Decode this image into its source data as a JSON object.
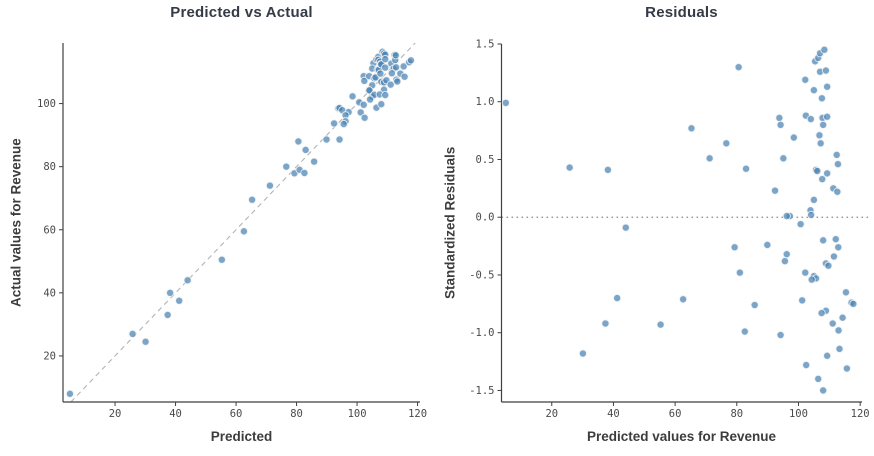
{
  "figure": {
    "background": "#ffffff"
  },
  "colors": {
    "marker": "#4682B4",
    "marker_opacity": 0.72,
    "marker_edge": "#f2f2f2",
    "identity_line": "#b3b3b3",
    "zero_line": "#8a8a8a",
    "axis": "#3f3f3f",
    "tick_label": "#4a4a4a",
    "title": "#343b47",
    "axis_label": "#3d3d3d"
  },
  "chart_data": [
    {
      "type": "scatter",
      "title": "Predicted vs Actual",
      "xlabel": "Predicted",
      "ylabel": "Actual values for Revenue",
      "xlim": [
        2.8,
        120.8
      ],
      "ylim": [
        5.4,
        119.2
      ],
      "xticks": [
        20,
        40,
        60,
        80,
        100,
        120
      ],
      "xtick_labels": [
        "20",
        "40",
        "60",
        "80",
        "100",
        "120"
      ],
      "yticks": [
        20,
        40,
        60,
        80,
        100
      ],
      "ytick_labels": [
        "20",
        "40",
        "60",
        "80",
        "100"
      ],
      "grid": false,
      "legend": false,
      "identity_line": true,
      "zero_line": false,
      "points": [
        [
          5.1,
          8
        ],
        [
          25.8,
          27
        ],
        [
          30.1,
          24.5
        ],
        [
          37.4,
          33
        ],
        [
          38.2,
          40
        ],
        [
          41.2,
          37.5
        ],
        [
          44,
          44
        ],
        [
          55.3,
          50.5
        ],
        [
          62.6,
          59.5
        ],
        [
          65.3,
          69.5
        ],
        [
          71.2,
          74
        ],
        [
          76.6,
          80
        ],
        [
          79.3,
          77.9
        ],
        [
          80.6,
          88
        ],
        [
          81,
          79
        ],
        [
          82.6,
          78
        ],
        [
          83,
          85.3
        ],
        [
          85.8,
          81.6
        ],
        [
          89.9,
          88.6
        ],
        [
          92.4,
          93.7
        ],
        [
          93.8,
          98.5
        ],
        [
          94.2,
          98.6
        ],
        [
          94.2,
          88.6
        ],
        [
          95.1,
          97.9
        ],
        [
          97.2,
          97.3
        ],
        [
          98.5,
          102.3
        ],
        [
          102.2,
          108.7
        ],
        [
          102.4,
          107.2
        ],
        [
          104,
          108.7
        ],
        [
          105.4,
          112.8
        ],
        [
          105,
          111.1
        ],
        [
          105.7,
          108
        ],
        [
          106.1,
          108.3
        ],
        [
          106.4,
          114
        ],
        [
          106.8,
          110.7
        ],
        [
          107,
          114.8
        ],
        [
          107,
          113.9
        ],
        [
          107.2,
          110.7
        ],
        [
          107.6,
          113.3
        ],
        [
          107.7,
          109.5
        ],
        [
          107.8,
          112.5
        ],
        [
          108,
          112.4
        ],
        [
          108.4,
          116.4
        ],
        [
          108.9,
          115.9
        ],
        [
          109.3,
          115.5
        ],
        [
          109.3,
          114.1
        ],
        [
          109.3,
          111.4
        ],
        [
          111.3,
          112.7
        ],
        [
          112.4,
          115.4
        ],
        [
          112.6,
          113.8
        ],
        [
          112.8,
          115.3
        ],
        [
          105,
          105.8
        ],
        [
          103.9,
          104.2
        ],
        [
          96.2,
          96.3
        ],
        [
          100.7,
          100.4
        ],
        [
          104.1,
          104.2
        ],
        [
          108,
          106.9
        ],
        [
          112.1,
          111.1
        ],
        [
          112.9,
          111.5
        ],
        [
          96.2,
          94.4
        ],
        [
          95.6,
          93.5
        ],
        [
          111.5,
          109.6
        ],
        [
          102.2,
          99.6
        ],
        [
          108.9,
          106.7
        ],
        [
          109.7,
          107.4
        ],
        [
          105,
          102.2
        ],
        [
          105.7,
          102.8
        ],
        [
          104.3,
          101.3
        ],
        [
          115.4,
          111.8
        ],
        [
          101.2,
          97.2
        ],
        [
          117.2,
          113.1
        ],
        [
          117.8,
          113.7
        ],
        [
          108.9,
          104.4
        ],
        [
          107.5,
          102.9
        ],
        [
          114.3,
          109.5
        ],
        [
          111.1,
          106
        ],
        [
          113,
          107.6
        ],
        [
          109.3,
          102.7
        ],
        [
          113.3,
          107
        ],
        [
          102.5,
          95.5
        ],
        [
          115.7,
          108.5
        ],
        [
          106.4,
          98.7
        ],
        [
          108,
          99.8
        ]
      ]
    },
    {
      "type": "scatter",
      "title": "Residuals",
      "xlabel": "Predicted values for Revenue",
      "ylabel": "Standardized Residuals",
      "xlim": [
        3.7,
        120.6
      ],
      "ylim": [
        -1.6,
        1.5
      ],
      "xticks": [
        20,
        40,
        60,
        80,
        100,
        120
      ],
      "xtick_labels": [
        "20",
        "40",
        "60",
        "80",
        "100",
        "120"
      ],
      "yticks": [
        -1.5,
        -1.0,
        -0.5,
        0.0,
        0.5,
        1.0,
        1.5
      ],
      "ytick_labels": [
        "-1.5",
        "-1.0",
        "-0.5",
        "0.0",
        "0.5",
        "1.0",
        "1.5"
      ],
      "grid": false,
      "legend": false,
      "identity_line": false,
      "zero_line": true,
      "points": [
        [
          5.1,
          0.99
        ],
        [
          25.8,
          0.43
        ],
        [
          30.1,
          -1.18
        ],
        [
          37.4,
          -0.92
        ],
        [
          38.2,
          0.41
        ],
        [
          41.2,
          -0.7
        ],
        [
          44,
          -0.09
        ],
        [
          55.3,
          -0.93
        ],
        [
          62.6,
          -0.71
        ],
        [
          65.3,
          0.77
        ],
        [
          71.2,
          0.51
        ],
        [
          76.6,
          0.64
        ],
        [
          79.3,
          -0.26
        ],
        [
          80.6,
          1.3
        ],
        [
          81,
          -0.48
        ],
        [
          82.6,
          -0.99
        ],
        [
          83,
          0.42
        ],
        [
          85.8,
          -0.76
        ],
        [
          89.9,
          -0.24
        ],
        [
          92.4,
          0.23
        ],
        [
          93.8,
          0.86
        ],
        [
          94.2,
          0.8
        ],
        [
          94.2,
          -1.02
        ],
        [
          95.1,
          0.51
        ],
        [
          97.2,
          0.01
        ],
        [
          98.5,
          0.69
        ],
        [
          102.2,
          1.19
        ],
        [
          102.4,
          0.88
        ],
        [
          104,
          0.85
        ],
        [
          105.4,
          1.35
        ],
        [
          105,
          1.1
        ],
        [
          105.7,
          0.41
        ],
        [
          106.1,
          0.4
        ],
        [
          106.4,
          1.38
        ],
        [
          106.8,
          0.71
        ],
        [
          107,
          1.42
        ],
        [
          107,
          1.26
        ],
        [
          107.2,
          0.64
        ],
        [
          107.6,
          1.03
        ],
        [
          107.7,
          0.33
        ],
        [
          107.8,
          0.86
        ],
        [
          108,
          0.8
        ],
        [
          108.4,
          1.45
        ],
        [
          108.9,
          1.27
        ],
        [
          109.3,
          1.13
        ],
        [
          109.3,
          0.87
        ],
        [
          109.3,
          0.38
        ],
        [
          111.3,
          0.25
        ],
        [
          112.4,
          0.54
        ],
        [
          112.6,
          0.22
        ],
        [
          112.8,
          0.46
        ],
        [
          105,
          0.15
        ],
        [
          103.9,
          0.06
        ],
        [
          96.2,
          0.01
        ],
        [
          100.7,
          -0.06
        ],
        [
          104.1,
          0.02
        ],
        [
          108,
          -0.2
        ],
        [
          112.1,
          -0.19
        ],
        [
          112.9,
          -0.26
        ],
        [
          96.2,
          -0.32
        ],
        [
          95.6,
          -0.38
        ],
        [
          111.5,
          -0.34
        ],
        [
          102.2,
          -0.48
        ],
        [
          108.9,
          -0.4
        ],
        [
          109.7,
          -0.42
        ],
        [
          105,
          -0.51
        ],
        [
          105.7,
          -0.53
        ],
        [
          104.3,
          -0.54
        ],
        [
          115.4,
          -0.65
        ],
        [
          101.2,
          -0.72
        ],
        [
          117.2,
          -0.74
        ],
        [
          117.8,
          -0.75
        ],
        [
          108.9,
          -0.81
        ],
        [
          107.5,
          -0.83
        ],
        [
          114.3,
          -0.87
        ],
        [
          111.1,
          -0.92
        ],
        [
          113,
          -0.98
        ],
        [
          109.3,
          -1.2
        ],
        [
          113.3,
          -1.14
        ],
        [
          102.5,
          -1.28
        ],
        [
          115.7,
          -1.31
        ],
        [
          106.4,
          -1.4
        ],
        [
          108,
          -1.5
        ]
      ]
    }
  ]
}
